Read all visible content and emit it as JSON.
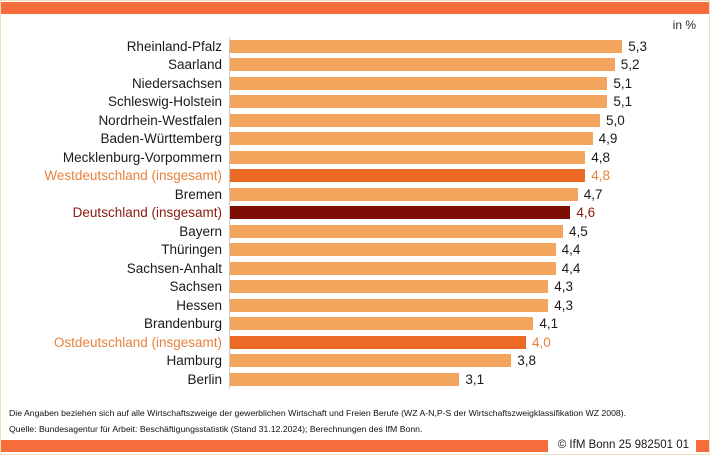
{
  "page": {
    "unit_label": "in %",
    "copyright": "© IfM Bonn 25 982501 01",
    "footnotes": {
      "line1": "Die Angaben beziehen sich auf alle Wirtschaftszweige der gewerblichen Wirtschaft und Freien Berufe (WZ A-N,P-S der Wirtschaftszweigklassifikation WZ 2008).",
      "line2": "Quelle: Bundesagentur für Arbeit: Beschäftigungsstatistik (Stand 31.12.2024); Berechnungen des IfM Bonn."
    }
  },
  "colors": {
    "band_orange": "#f76c3b",
    "bar_normal": "#f2a45c",
    "bar_aggregate_orange": "#eb6a25",
    "bar_aggregate_dark": "#7e0d05",
    "text_aggregate_orange": "#e8813c",
    "text_aggregate_dark": "#8b1a10"
  },
  "chart_data": {
    "type": "bar",
    "orientation": "horizontal",
    "unit": "%",
    "title": "",
    "xlabel": "in %",
    "ylabel": "",
    "xlim": [
      0,
      6
    ],
    "grid": false,
    "categories": [
      "Rheinland-Pfalz",
      "Saarland",
      "Niedersachsen",
      "Schleswig-Holstein",
      "Nordrhein-Westfalen",
      "Baden-Württemberg",
      "Mecklenburg-Vorpommern",
      "Westdeutschland (insgesamt)",
      "Bremen",
      "Deutschland (insgesamt)",
      "Bayern",
      "Thüringen",
      "Sachsen-Anhalt",
      "Sachsen",
      "Hessen",
      "Brandenburg",
      "Ostdeutschland (insgesamt)",
      "Hamburg",
      "Berlin"
    ],
    "values": [
      5.3,
      5.2,
      5.1,
      5.1,
      5.0,
      4.9,
      4.8,
      4.8,
      4.7,
      4.6,
      4.5,
      4.4,
      4.4,
      4.3,
      4.3,
      4.1,
      4.0,
      3.8,
      3.1
    ],
    "value_labels": [
      "5,3",
      "5,2",
      "5,1",
      "5,1",
      "5,0",
      "4,9",
      "4,8",
      "4,8",
      "4,7",
      "4,6",
      "4,5",
      "4,4",
      "4,4",
      "4,3",
      "4,3",
      "4,1",
      "4,0",
      "3,8",
      "3,1"
    ],
    "emphasis": [
      "normal",
      "normal",
      "normal",
      "normal",
      "normal",
      "normal",
      "normal",
      "west",
      "normal",
      "germany",
      "normal",
      "normal",
      "normal",
      "normal",
      "normal",
      "normal",
      "east",
      "normal",
      "normal"
    ]
  }
}
